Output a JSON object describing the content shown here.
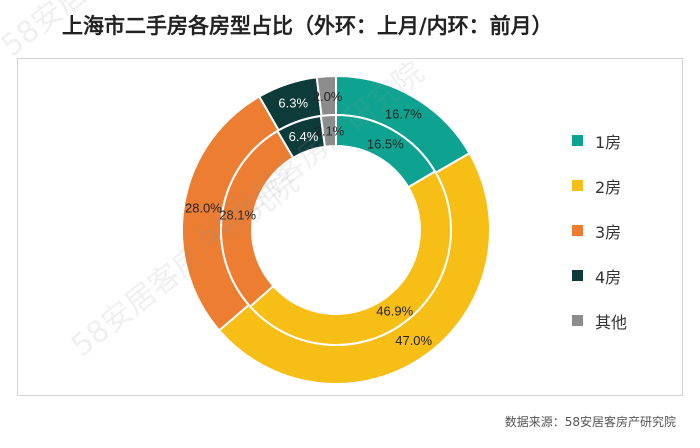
{
  "title": "上海市二手房各房型占比（外环：上月/内环：前月）",
  "source": "数据来源：58安居客房产研究院",
  "watermark": "58安居客房产研究院",
  "chart_data": {
    "type": "donut",
    "title": "上海市二手房各房型占比（外环：上月/内环：前月）",
    "legend_position": "right",
    "categories": [
      "1房",
      "2房",
      "3房",
      "4房",
      "其他"
    ],
    "colors": [
      "#0da390",
      "#f7be16",
      "#ed7d31",
      "#0d3b3a",
      "#8c8c8c"
    ],
    "series": [
      {
        "name": "上月",
        "ring": "outer",
        "values": [
          16.7,
          47.0,
          28.0,
          6.3,
          2.0
        ],
        "labels": [
          "16.7%",
          "47.0%",
          "28.0%",
          "6.3%",
          "2.0%"
        ]
      },
      {
        "name": "前月",
        "ring": "inner",
        "values": [
          16.5,
          46.9,
          28.1,
          6.4,
          2.1
        ],
        "labels": [
          "16.5%",
          "46.9%",
          "28.1%",
          "6.4%",
          "2.1%"
        ]
      }
    ]
  }
}
